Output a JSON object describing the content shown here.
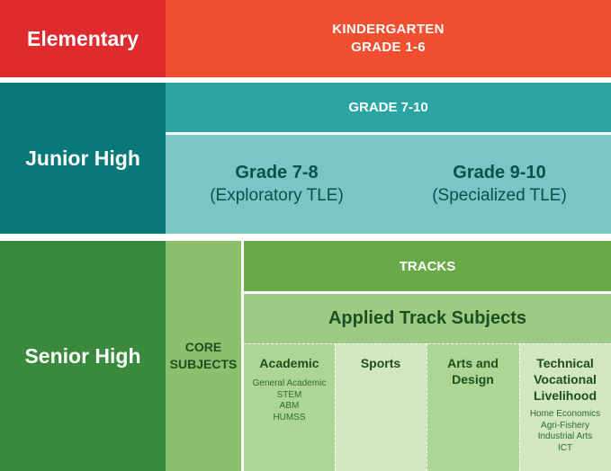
{
  "elementary": {
    "label": "Elementary",
    "content": [
      "KINDERGARTEN",
      "GRADE 1-6"
    ]
  },
  "junior_high": {
    "label": "Junior High",
    "header": "GRADE 7-10",
    "columns": [
      {
        "title": "Grade 7-8",
        "subtitle": "(Exploratory TLE)"
      },
      {
        "title": "Grade 9-10",
        "subtitle": "(Specialized TLE)"
      }
    ]
  },
  "senior_high": {
    "label": "Senior High",
    "core": [
      "CORE",
      "SUBJECTS"
    ],
    "tracks_header": "TRACKS",
    "applied_header": "Applied Track Subjects",
    "tracks": [
      {
        "title": [
          "Academic"
        ],
        "items": [
          "General Academic",
          "STEM",
          "ABM",
          "HUMSS"
        ]
      },
      {
        "title": [
          "Sports"
        ],
        "items": []
      },
      {
        "title": [
          "Arts and",
          "Design"
        ],
        "items": []
      },
      {
        "title": [
          "Technical",
          "Vocational",
          "Livelihood"
        ],
        "items": [
          "Home Economics",
          "Agri-Fishery",
          "Industrial Arts",
          "ICT"
        ]
      }
    ]
  },
  "colors": {
    "elementary_label": "#e02b2e",
    "elementary_content": "#f0502f",
    "junior_label": "#087878",
    "junior_header": "#2aa5a1",
    "junior_body": "#79c6c5",
    "senior_label": "#3a8a3e",
    "core": "#8cbf6e",
    "tracks": "#6aa947",
    "applied": "#9ecb84"
  }
}
